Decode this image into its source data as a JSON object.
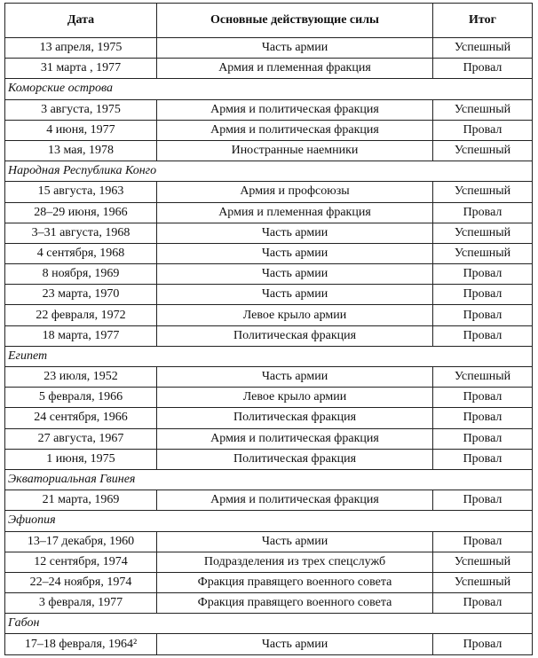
{
  "table": {
    "header": [
      "Дата",
      "Основные действующие силы",
      "Итог"
    ],
    "rows": [
      [
        "13 апреля, 1975",
        "Часть армии",
        "Успешный"
      ],
      [
        "31 марта , 1977",
        "Армия и племенная фракция",
        "Провал"
      ],
      [
        "Коморские острова"
      ],
      [
        "3 августа, 1975",
        "Армия и политическая фракция",
        "Успешный"
      ],
      [
        "4 июня, 1977",
        "Армия и политическая фракция",
        "Провал"
      ],
      [
        "13 мая, 1978",
        "Иностранные наемники",
        "Успешный"
      ],
      [
        "Народная Республика Конго"
      ],
      [
        "15 августа, 1963",
        "Армия и профсоюзы",
        "Успешный"
      ],
      [
        "28–29 июня, 1966",
        "Армия и племенная фракция",
        "Провал"
      ],
      [
        "3–31 августа, 1968",
        "Часть армии",
        "Успешный"
      ],
      [
        "4 сентября, 1968",
        "Часть армии",
        "Успешный"
      ],
      [
        "8 ноября, 1969",
        "Часть армии",
        "Провал"
      ],
      [
        "23 марта, 1970",
        "Часть армии",
        "Провал"
      ],
      [
        "22 февраля, 1972",
        "Левое крыло армии",
        "Провал"
      ],
      [
        "18 марта, 1977",
        "Политическая фракция",
        "Провал"
      ],
      [
        "Египет"
      ],
      [
        "23 июля, 1952",
        "Часть армии",
        "Успешный"
      ],
      [
        "5 февраля, 1966",
        "Левое крыло армии",
        "Провал"
      ],
      [
        "24 сентября, 1966",
        "Политическая фракция",
        "Провал"
      ],
      [
        "27 августа, 1967",
        "Армия и политическая фракция",
        "Провал"
      ],
      [
        "1 июня, 1975",
        "Политическая фракция",
        "Провал"
      ],
      [
        "Экваториальная Гвинея"
      ],
      [
        "21 марта, 1969",
        "Армия и политическая фракция",
        "Провал"
      ],
      [
        "Эфиопия"
      ],
      [
        "13–17 декабря, 1960",
        "Часть армии",
        "Провал"
      ],
      [
        "12 сентября, 1974",
        "Подразделения из трех спецслужб",
        "Успешный"
      ],
      [
        "22–24 ноября, 1974",
        "Фракция правящего военного совета",
        "Успешный"
      ],
      [
        "3 февраля, 1977",
        "Фракция правящего военного совета",
        "Провал"
      ],
      [
        "Габон"
      ],
      [
        "17–18 февраля, 1964²",
        "Часть армии",
        "Провал"
      ]
    ]
  }
}
